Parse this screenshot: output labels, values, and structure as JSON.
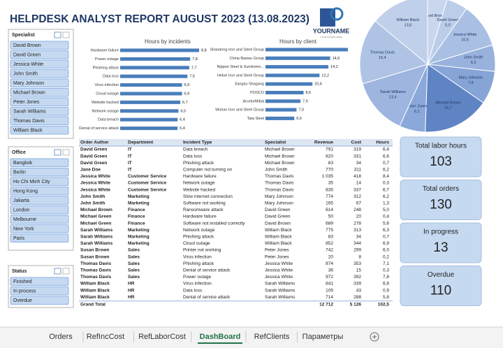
{
  "header": {
    "title": "HELPDESK ANALYST REPORT AUGUST 2023  (13.08.2023)",
    "logo": "YOURNAME",
    "slogan": "YOUR SLOGAN HERE"
  },
  "slicers": [
    {
      "title": "Specialist",
      "items": [
        "David Brown",
        "David Green",
        "Jessica White",
        "John Smith",
        "Mary Johnson",
        "Michael Brown",
        "Peter Jones",
        "Sarah Williams",
        "Thomas Davis",
        "William Black"
      ]
    },
    {
      "title": "Office",
      "items": [
        "Bangkok",
        "Berlin",
        "Ho Chi Minh City",
        "Hong Kong",
        "Jakarta",
        "London",
        "Melbourne",
        "New York",
        "Paris"
      ]
    },
    {
      "title": "Status",
      "items": [
        "Finished",
        "In process",
        "Overdue"
      ]
    }
  ],
  "chart_data": [
    {
      "type": "bar",
      "title": "Hours by incidents",
      "color": "#4a7ebb",
      "categories": [
        "Hardware failure",
        "Power outage",
        "Phishing attack",
        "Data loss",
        "Virus infection",
        "Cloud outage",
        "Website hacked",
        "Network outage",
        "Data breach",
        "Denial of service attack"
      ],
      "values": [
        8.8,
        7.8,
        7.7,
        7.5,
        6.9,
        6.9,
        6.7,
        6.5,
        6.4,
        6.4
      ],
      "value_labels": [
        "8,8",
        "7,8",
        "7,7",
        "7,5",
        "6,9",
        "6,9",
        "6,7",
        "6,5",
        "6,4",
        "6,4"
      ]
    },
    {
      "type": "bar",
      "title": "Hours by client",
      "color": "#4a7ebb",
      "categories": [
        "Shandong Iron and Steel Group",
        "China Baowu Group",
        "Nippon Steel & Sumitomo...",
        "Hebei Iron and Steel Group",
        "Jiangsu Shagang",
        "POSCO",
        "ArcelorMittal",
        "Wuhan Iron and Steel Group",
        "Tata Steel"
      ],
      "values": [
        18.6,
        14.6,
        14.2,
        12.2,
        10.6,
        8.6,
        7.9,
        7.0,
        6.5
      ],
      "value_labels": [
        null,
        "14,6",
        "14,2",
        "12,2",
        "10,6",
        "8,6",
        "7,9",
        "7,0",
        "6,5"
      ]
    },
    {
      "type": "pie",
      "categories": [
        "David Brown",
        "David Green",
        "Jessica White",
        "John Smith",
        "Mary Johnson",
        "Michael Brown",
        "Peter Jones",
        "Sarah Williams",
        "Thomas Davis",
        "William Black"
      ],
      "values": [
        4.6,
        5.0,
        10.5,
        6.2,
        7.8,
        15.7,
        6.1,
        13.4,
        15.4,
        13.8
      ],
      "value_labels": [
        null,
        "5,0",
        "10,5",
        "6,2",
        "7,8",
        "15,7",
        "6,1",
        "13,4",
        "15,4",
        "13,8"
      ],
      "colors": [
        "#c9d6ee",
        "#bccdea",
        "#a9bfe3",
        "#98b2dd",
        "#86a4d6",
        "#5f84c3",
        "#8ba8da",
        "#9db5df",
        "#afc3e5",
        "#c0d0ea"
      ]
    }
  ],
  "table": {
    "headers": [
      "Order Author",
      "Department",
      "Incident Type",
      "Specialist",
      "Revenue",
      "Cost",
      "Hours"
    ],
    "rows": [
      [
        "David Green",
        "IT",
        "Data breach",
        "Michael Brown",
        "791",
        "319",
        "6,4"
      ],
      [
        "David Green",
        "IT",
        "Data loss",
        "Michael Brown",
        "820",
        "331",
        "6,6"
      ],
      [
        "David Green",
        "IT",
        "Phishing attack",
        "Michael Brown",
        "83",
        "34",
        "0,7"
      ],
      [
        "Jane Doe",
        "IT",
        "Computer not turning on",
        "John Smith",
        "770",
        "311",
        "6,2"
      ],
      [
        "Jessica White",
        "Customer Service",
        "Hardware failure",
        "Thomas Davis",
        "1 035",
        "418",
        "8,4"
      ],
      [
        "Jessica White",
        "Customer Service",
        "Network outage",
        "Thomas Davis",
        "35",
        "14",
        "0,3"
      ],
      [
        "Jessica White",
        "Customer Service",
        "Website hacked",
        "Thomas Davis",
        "835",
        "337",
        "6,7"
      ],
      [
        "John Smith",
        "Marketing",
        "Slow internet connection",
        "Mary Johnson",
        "774",
        "312",
        "6,2"
      ],
      [
        "John Smith",
        "Marketing",
        "Software not working",
        "Mary Johnson",
        "165",
        "67",
        "1,3"
      ],
      [
        "Michael Brown",
        "Finance",
        "Ransomware attack",
        "David Green",
        "614",
        "248",
        "5,0"
      ],
      [
        "Michael Green",
        "Finance",
        "Hardware failure",
        "David Green",
        "50",
        "20",
        "0,4"
      ],
      [
        "Michael Green",
        "Finance",
        "Software not installed correctly",
        "David Brown",
        "689",
        "278",
        "5,6"
      ],
      [
        "Sarah Williams",
        "Marketing",
        "Network outage",
        "William Black",
        "775",
        "313",
        "6,3"
      ],
      [
        "Sarah Williams",
        "Marketing",
        "Phishing attack",
        "William Black",
        "83",
        "34",
        "0,7"
      ],
      [
        "Sarah Williams",
        "Marketing",
        "Cloud outage",
        "William Black",
        "852",
        "344",
        "6,9"
      ],
      [
        "Susan Brown",
        "Sales",
        "Printer not working",
        "Peter Jones",
        "742",
        "299",
        "6,0"
      ],
      [
        "Susan Brown",
        "Sales",
        "Virus infection",
        "Peter Jones",
        "20",
        "8",
        "0,2"
      ],
      [
        "Thomas Davis",
        "Sales",
        "Phishing attack",
        "Jessica White",
        "874",
        "353",
        "7,1"
      ],
      [
        "Thomas Davis",
        "Sales",
        "Denial of service attack",
        "Jessica White",
        "36",
        "15",
        "0,3"
      ],
      [
        "Thomas Davis",
        "Sales",
        "Power outage",
        "Jessica White",
        "972",
        "392",
        "7,8"
      ],
      [
        "William Black",
        "HR",
        "Virus infection",
        "Sarah Williams",
        "841",
        "339",
        "6,8"
      ],
      [
        "William Black",
        "HR",
        "Data loss",
        "Sarah Williams",
        "105",
        "43",
        "0,9"
      ],
      [
        "William Black",
        "HR",
        "Denial of service attack",
        "Sarah Williams",
        "714",
        "288",
        "5,8"
      ]
    ],
    "total": [
      "Grand Total",
      "12 712",
      "5 126",
      "102,5"
    ]
  },
  "kpis": [
    {
      "label": "Total labor hours",
      "value": 103
    },
    {
      "label": "Total orders",
      "value": 130
    },
    {
      "label": "In progress",
      "value": 13
    },
    {
      "label": "Overdue",
      "value": 110
    }
  ],
  "tabs": [
    "Orders",
    "RefIncCost",
    "RefLaborCost",
    "DashBoard",
    "RefClients",
    "Параметры"
  ],
  "active_tab": 3
}
